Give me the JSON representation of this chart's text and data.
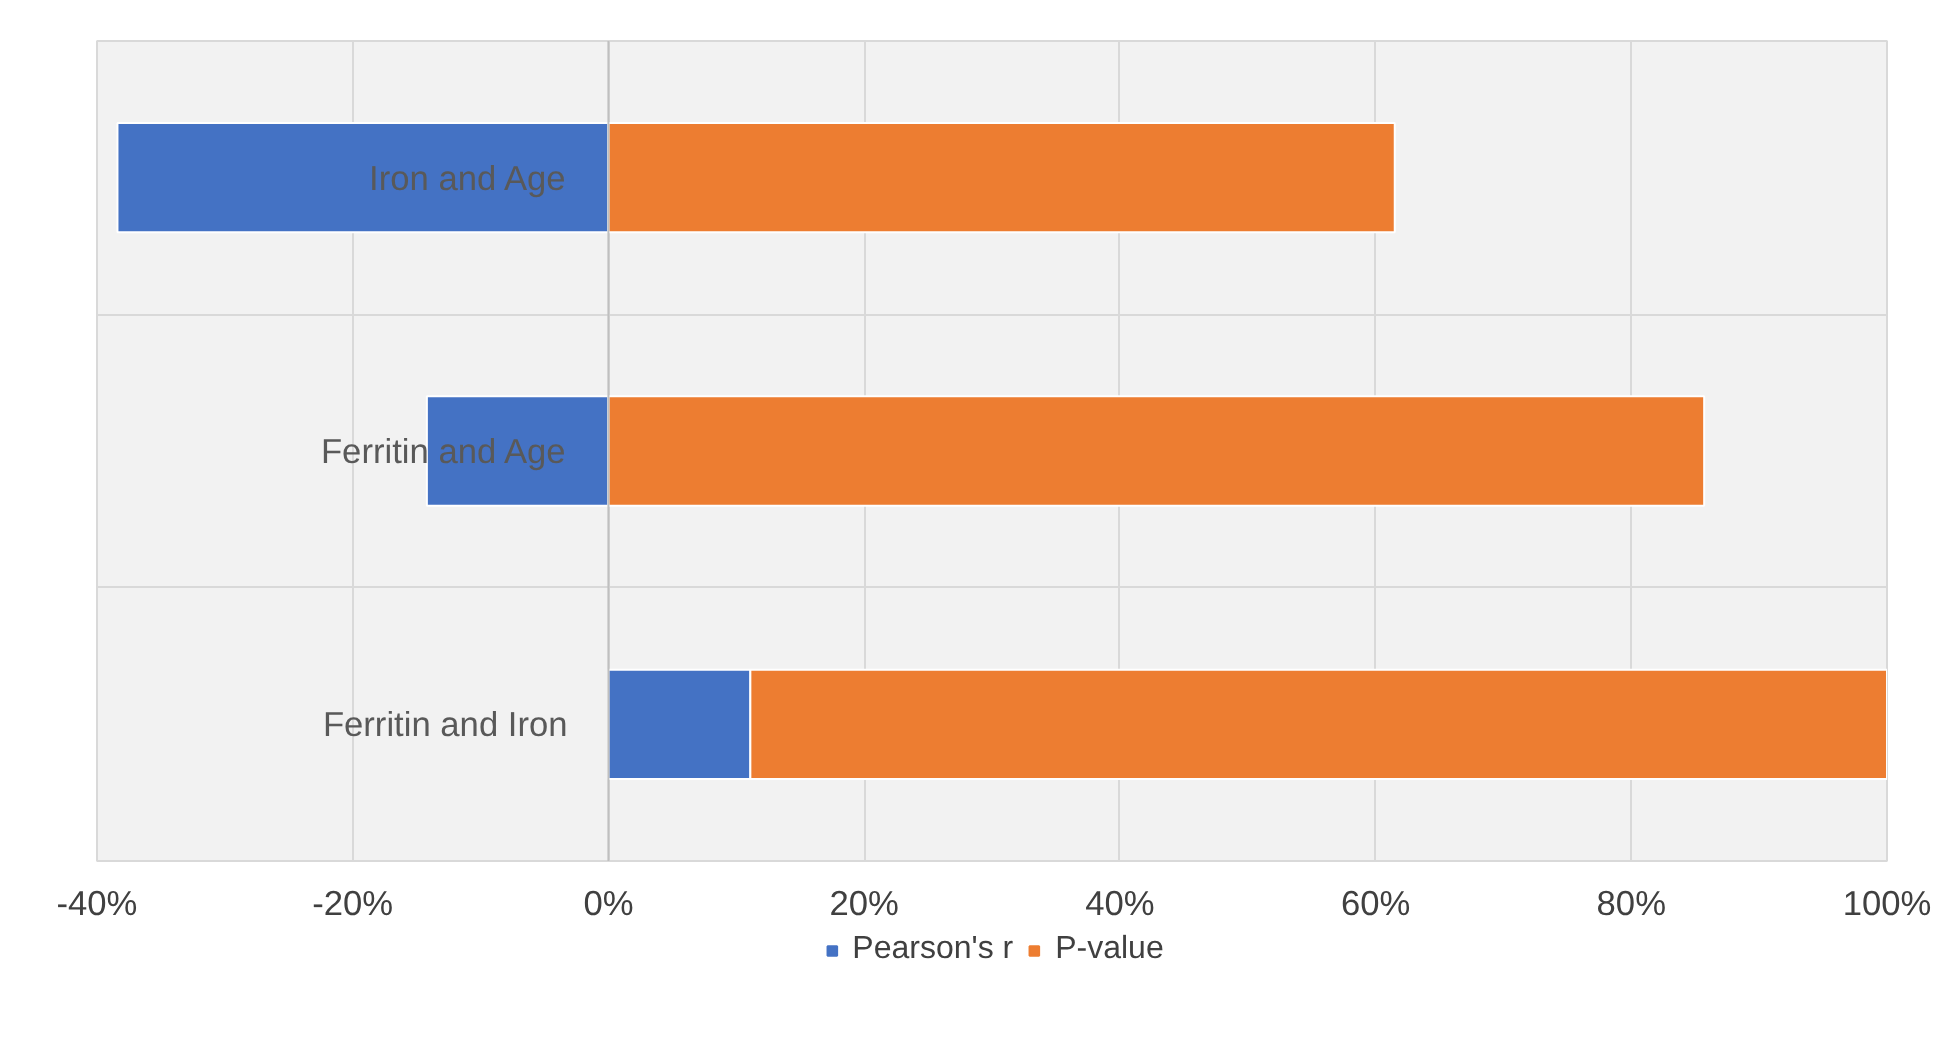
{
  "chart_data": {
    "type": "bar",
    "orientation": "horizontal",
    "stacked": true,
    "categories": [
      "Iron and Age",
      "Ferritin and Age",
      "Ferritin and Iron"
    ],
    "series": [
      {
        "name": "Pearson's r",
        "color": "#4472c4",
        "values": [
          -38.4,
          -14.2,
          11.1
        ]
      },
      {
        "name": "P-value",
        "color": "#ed7d31",
        "values": [
          61.5,
          85.7,
          88.9
        ]
      }
    ],
    "xlim": [
      -40,
      100
    ],
    "xticks": [
      {
        "value": -40,
        "label": "-40%"
      },
      {
        "value": -20,
        "label": "-20%"
      },
      {
        "value": 0,
        "label": "0%"
      },
      {
        "value": 20,
        "label": "20%"
      },
      {
        "value": 40,
        "label": "40%"
      },
      {
        "value": 60,
        "label": "60%"
      },
      {
        "value": 80,
        "label": "80%"
      },
      {
        "value": 100,
        "label": "100%"
      }
    ],
    "grid": true,
    "legend": "bottom"
  }
}
